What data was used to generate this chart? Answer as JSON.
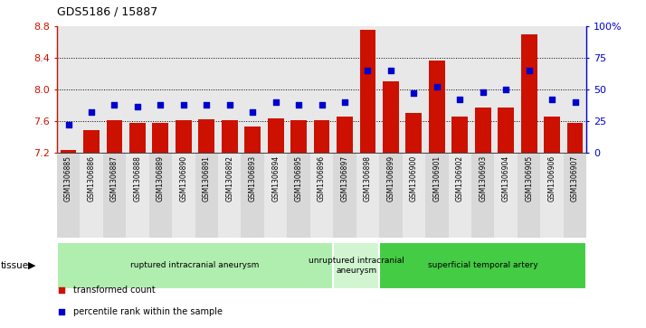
{
  "title": "GDS5186 / 15887",
  "samples": [
    "GSM1306885",
    "GSM1306886",
    "GSM1306887",
    "GSM1306888",
    "GSM1306889",
    "GSM1306890",
    "GSM1306891",
    "GSM1306892",
    "GSM1306893",
    "GSM1306894",
    "GSM1306895",
    "GSM1306896",
    "GSM1306897",
    "GSM1306898",
    "GSM1306899",
    "GSM1306900",
    "GSM1306901",
    "GSM1306902",
    "GSM1306903",
    "GSM1306904",
    "GSM1306905",
    "GSM1306906",
    "GSM1306907"
  ],
  "transformed_count": [
    7.23,
    7.48,
    7.61,
    7.57,
    7.58,
    7.61,
    7.62,
    7.61,
    7.53,
    7.63,
    7.61,
    7.61,
    7.65,
    8.76,
    8.1,
    7.7,
    8.36,
    7.65,
    7.77,
    7.77,
    8.7,
    7.65,
    7.57
  ],
  "percentile_rank": [
    22,
    32,
    38,
    36,
    38,
    38,
    38,
    38,
    32,
    40,
    38,
    38,
    40,
    65,
    65,
    47,
    52,
    42,
    48,
    50,
    65,
    42,
    40
  ],
  "groups": [
    {
      "label": "ruptured intracranial aneurysm",
      "start": 0,
      "end": 12,
      "color": "#b0eeb0"
    },
    {
      "label": "unruptured intracranial\naneurysm",
      "start": 12,
      "end": 14,
      "color": "#d0f5d0"
    },
    {
      "label": "superficial temporal artery",
      "start": 14,
      "end": 23,
      "color": "#44cc44"
    }
  ],
  "ylim_left": [
    7.2,
    8.8
  ],
  "ylim_right": [
    0,
    100
  ],
  "yticks_left": [
    7.2,
    7.6,
    8.0,
    8.4,
    8.8
  ],
  "yticks_right": [
    0,
    25,
    50,
    75,
    100
  ],
  "ytick_labels_right": [
    "0",
    "25",
    "50",
    "75",
    "100%"
  ],
  "bar_color": "#cc1100",
  "dot_color": "#0000cc",
  "grid_values": [
    7.6,
    8.0,
    8.4
  ],
  "plot_bg": "#e8e8e8",
  "xtick_bg_odd": "#d8d8d8",
  "xtick_bg_even": "#e8e8e8",
  "legend": [
    {
      "label": "transformed count",
      "color": "#cc1100"
    },
    {
      "label": "percentile rank within the sample",
      "color": "#0000cc"
    }
  ]
}
